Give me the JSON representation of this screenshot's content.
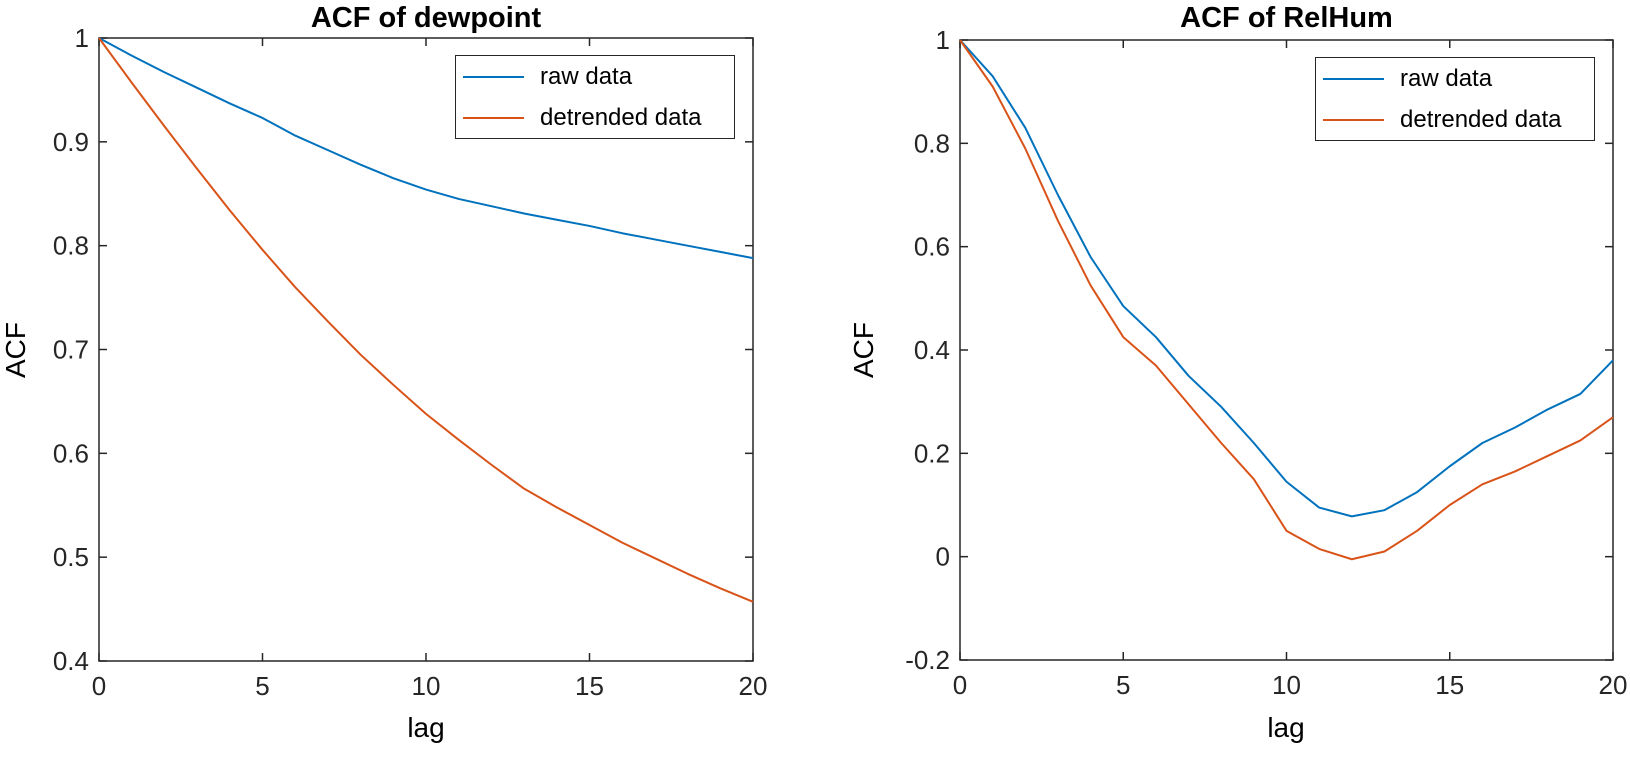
{
  "figure": {
    "background": "#ffffff"
  },
  "colors": {
    "raw": "#0072BD",
    "detrended": "#D95319",
    "axis": "#262626",
    "tick_label": "#262626",
    "text": "#000000"
  },
  "chart_data": [
    {
      "type": "line",
      "title": "ACF of dewpoint",
      "xlabel": "lag",
      "ylabel": "ACF",
      "xlim": [
        0,
        20
      ],
      "ylim": [
        0.4,
        1.0
      ],
      "grid": false,
      "legend_position": "northeast",
      "legend": [
        "raw data",
        "detrended data"
      ],
      "xticks": {
        "values": [
          0,
          5,
          10,
          15,
          20
        ],
        "labels": [
          "0",
          "5",
          "10",
          "15",
          "20"
        ]
      },
      "yticks": {
        "values": [
          0.4,
          0.5,
          0.6,
          0.7,
          0.8,
          0.9,
          1.0
        ],
        "labels": [
          "0.4",
          "0.5",
          "0.6",
          "0.7",
          "0.8",
          "0.9",
          "1"
        ]
      },
      "x": [
        0,
        1,
        2,
        3,
        4,
        5,
        6,
        7,
        8,
        9,
        10,
        11,
        12,
        13,
        14,
        15,
        16,
        17,
        18,
        19,
        20
      ],
      "series": [
        {
          "name": "raw data",
          "color_key": "raw",
          "values": [
            1.0,
            0.983,
            0.967,
            0.952,
            0.937,
            0.923,
            0.906,
            0.892,
            0.878,
            0.865,
            0.854,
            0.845,
            0.838,
            0.831,
            0.825,
            0.819,
            0.812,
            0.806,
            0.8,
            0.794,
            0.788
          ]
        },
        {
          "name": "detrended data",
          "color_key": "detrended",
          "values": [
            1.0,
            0.957,
            0.915,
            0.874,
            0.834,
            0.796,
            0.76,
            0.727,
            0.695,
            0.666,
            0.638,
            0.613,
            0.589,
            0.566,
            0.548,
            0.531,
            0.514,
            0.499,
            0.484,
            0.47,
            0.457
          ]
        }
      ]
    },
    {
      "type": "line",
      "title": "ACF of RelHum",
      "xlabel": "lag",
      "ylabel": "ACF",
      "xlim": [
        0,
        20
      ],
      "ylim": [
        -0.2,
        1.0
      ],
      "grid": false,
      "legend_position": "northeast",
      "legend": [
        "raw data",
        "detrended data"
      ],
      "xticks": {
        "values": [
          0,
          5,
          10,
          15,
          20
        ],
        "labels": [
          "0",
          "5",
          "10",
          "15",
          "20"
        ]
      },
      "yticks": {
        "values": [
          -0.2,
          0,
          0.2,
          0.4,
          0.6,
          0.8,
          1.0
        ],
        "labels": [
          "-0.2",
          "0",
          "0.2",
          "0.4",
          "0.6",
          "0.8",
          "1"
        ]
      },
      "x": [
        0,
        1,
        2,
        3,
        4,
        5,
        6,
        7,
        8,
        9,
        10,
        11,
        12,
        13,
        14,
        15,
        16,
        17,
        18,
        19,
        20
      ],
      "series": [
        {
          "name": "raw data",
          "color_key": "raw",
          "values": [
            1.0,
            0.93,
            0.83,
            0.7,
            0.58,
            0.485,
            0.425,
            0.35,
            0.29,
            0.22,
            0.145,
            0.095,
            0.078,
            0.09,
            0.125,
            0.175,
            0.22,
            0.25,
            0.285,
            0.315,
            0.38
          ]
        },
        {
          "name": "detrended data",
          "color_key": "detrended",
          "values": [
            1.0,
            0.91,
            0.79,
            0.65,
            0.525,
            0.425,
            0.37,
            0.295,
            0.22,
            0.15,
            0.05,
            0.015,
            -0.005,
            0.01,
            0.05,
            0.1,
            0.14,
            0.165,
            0.195,
            0.225,
            0.27
          ]
        }
      ]
    }
  ]
}
